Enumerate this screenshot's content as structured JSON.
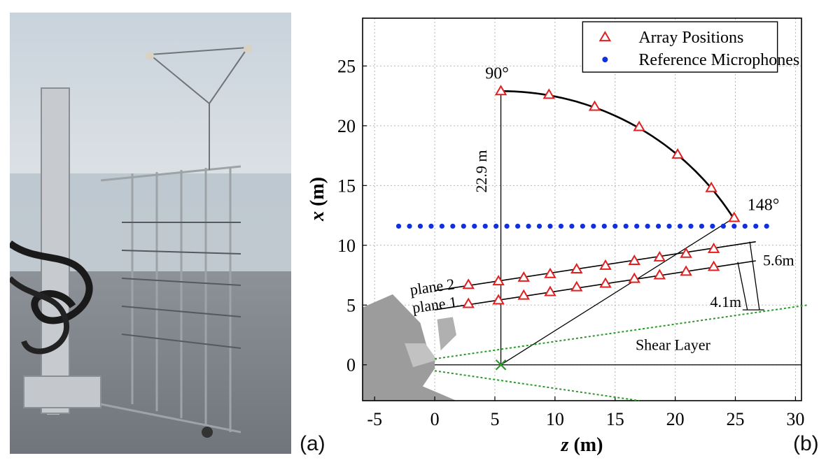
{
  "panels": {
    "left_label": "(a)",
    "right_label": "(b)"
  },
  "photo": {
    "subject": "microphone-array-rig-photo"
  },
  "chart_data": {
    "type": "scatter",
    "title": "",
    "xlabel_var": "z",
    "xlabel_unit": " (m)",
    "ylabel_var": "x",
    "ylabel_unit": " (m)",
    "xlim": [
      -6,
      30.5
    ],
    "ylim": [
      -3,
      29
    ],
    "xticks": [
      -5,
      0,
      5,
      10,
      15,
      20,
      25,
      30
    ],
    "yticks": [
      0,
      5,
      10,
      15,
      20,
      25
    ],
    "grid": true,
    "legend": {
      "placement": "top-right"
    },
    "series": [
      {
        "name": "Array Positions",
        "marker": "triangle",
        "color": "#e02020",
        "points": [
          [
            5.5,
            22.9
          ],
          [
            9.5,
            22.6
          ],
          [
            13.3,
            21.6
          ],
          [
            17.0,
            19.9
          ],
          [
            20.2,
            17.6
          ],
          [
            23.0,
            14.8
          ],
          [
            24.9,
            12.3
          ],
          [
            2.8,
            6.7
          ],
          [
            5.3,
            7.0
          ],
          [
            7.4,
            7.3
          ],
          [
            9.6,
            7.6
          ],
          [
            11.8,
            8.0
          ],
          [
            14.2,
            8.3
          ],
          [
            16.6,
            8.7
          ],
          [
            18.7,
            9.0
          ],
          [
            20.9,
            9.3
          ],
          [
            23.2,
            9.7
          ],
          [
            2.8,
            5.1
          ],
          [
            5.3,
            5.4
          ],
          [
            7.4,
            5.8
          ],
          [
            9.6,
            6.1
          ],
          [
            11.8,
            6.5
          ],
          [
            14.2,
            6.8
          ],
          [
            16.6,
            7.2
          ],
          [
            18.7,
            7.5
          ],
          [
            20.9,
            7.8
          ],
          [
            23.2,
            8.2
          ]
        ]
      },
      {
        "name": "Reference Microphones",
        "marker": "dot",
        "color": "#1030e0",
        "x_start": -3.0,
        "x_step": 0.9,
        "count": 35,
        "y": 11.6
      }
    ],
    "annotations": {
      "angle_90": "90°",
      "angle_148": "148°",
      "distance_vertical": "22.9 m",
      "plane2": "plane 2",
      "plane1": "plane 1",
      "spacing_upper": "5.6m",
      "spacing_lower": "4.1m",
      "shear_layer": "Shear Layer"
    },
    "geometry_data": {
      "arc_center": [
        5.5,
        0
      ],
      "origin_marker": [
        5.5,
        0
      ],
      "plane2_line": [
        [
          0,
          6.2
        ],
        [
          26.7,
          10.3
        ]
      ],
      "plane1_line": [
        [
          0,
          4.6
        ],
        [
          26.7,
          8.7
        ]
      ],
      "shear_layer_upper": [
        [
          0,
          0.5
        ],
        [
          31,
          5.0
        ]
      ],
      "shear_layer_lower": [
        [
          0,
          -0.5
        ],
        [
          17,
          -3.0
        ]
      ]
    }
  }
}
